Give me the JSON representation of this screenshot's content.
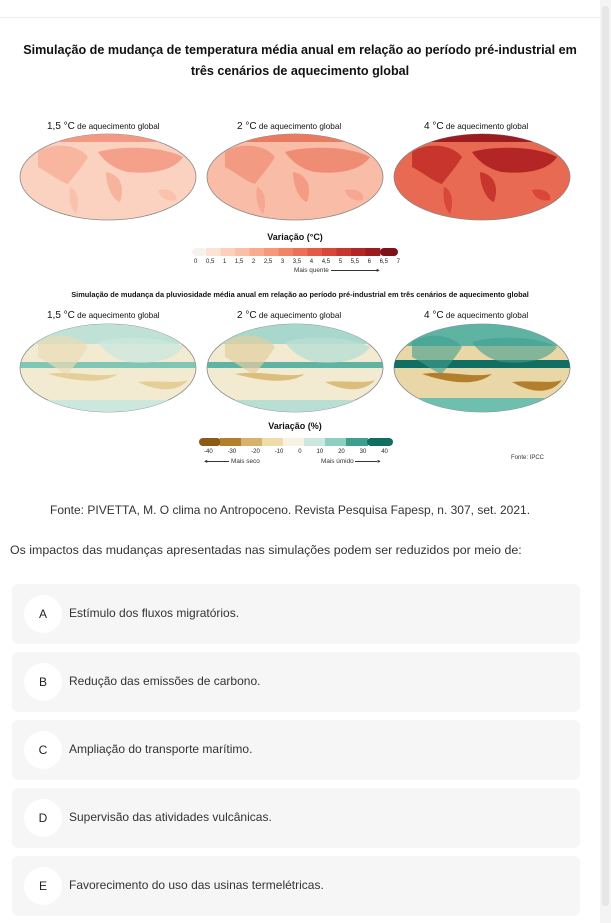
{
  "figure": {
    "title_line1": "Simulação de mudança de temperatura média anual em relação ao período pré-industrial em",
    "title_line2": "três cenários de aquecimento global",
    "temp_maps": [
      {
        "label_num": "1,5 °C",
        "label_rest": " de aquecimento global"
      },
      {
        "label_num": "2 °C",
        "label_rest": " de aquecimento global"
      },
      {
        "label_num": "4 °C",
        "label_rest": " de aquecimento global"
      }
    ],
    "temp_legend": {
      "title": "Variação (°C)",
      "ticks": [
        "0",
        "0,5",
        "1",
        "1,5",
        "2",
        "2,5",
        "3",
        "3,5",
        "4",
        "4,5",
        "5",
        "5,5",
        "6",
        "6,5",
        "7"
      ],
      "note": "Mais quente",
      "colors": [
        "#f7f2ef",
        "#fde3d6",
        "#fcd0bd",
        "#fbbfa7",
        "#f9ab90",
        "#f6987b",
        "#f28466",
        "#ec7056",
        "#e35b45",
        "#d84739",
        "#c8352c",
        "#b42625",
        "#9c1b1f",
        "#7f1119"
      ]
    },
    "precip_title": "Simulação de mudança da pluviosidade média anual em relação ao período pré-industrial em três cenários de aquecimento global",
    "precip_maps": [
      {
        "label_num": "1,5 °C",
        "label_rest": " de aquecimento global"
      },
      {
        "label_num": "2 °C",
        "label_rest": " de aquecimento global"
      },
      {
        "label_num": "4 °C",
        "label_rest": " de aquecimento global"
      }
    ],
    "precip_legend": {
      "title": "Variação (%)",
      "ticks": [
        "-40",
        "-30",
        "-20",
        "-10",
        "0",
        "10",
        "20",
        "30",
        "40"
      ],
      "note_left": "Mais seco",
      "note_right": "Mais úmido",
      "colors": [
        "#8c5a14",
        "#b47f2c",
        "#d6b26a",
        "#efdcaa",
        "#f7f2e3",
        "#cce7de",
        "#8fcfc1",
        "#3f9f8f",
        "#116e63"
      ]
    },
    "credit": "Fonte: IPCC"
  },
  "source": "Fonte: PIVETTA, M. O clima no Antropoceno. Revista Pesquisa Fapesp, n. 307, set. 2021.",
  "question": "Os impactos das mudanças apresentadas nas simulações podem ser reduzidos por meio de:",
  "options": [
    {
      "letter": "A",
      "text": "Estímulo dos fluxos migratórios."
    },
    {
      "letter": "B",
      "text": "Redução das emissões de carbono."
    },
    {
      "letter": "C",
      "text": "Ampliação do transporte marítimo."
    },
    {
      "letter": "D",
      "text": "Supervisão das atividades vulcânicas."
    },
    {
      "letter": "E",
      "text": "Favorecimento do uso das usinas termelétricas."
    }
  ]
}
